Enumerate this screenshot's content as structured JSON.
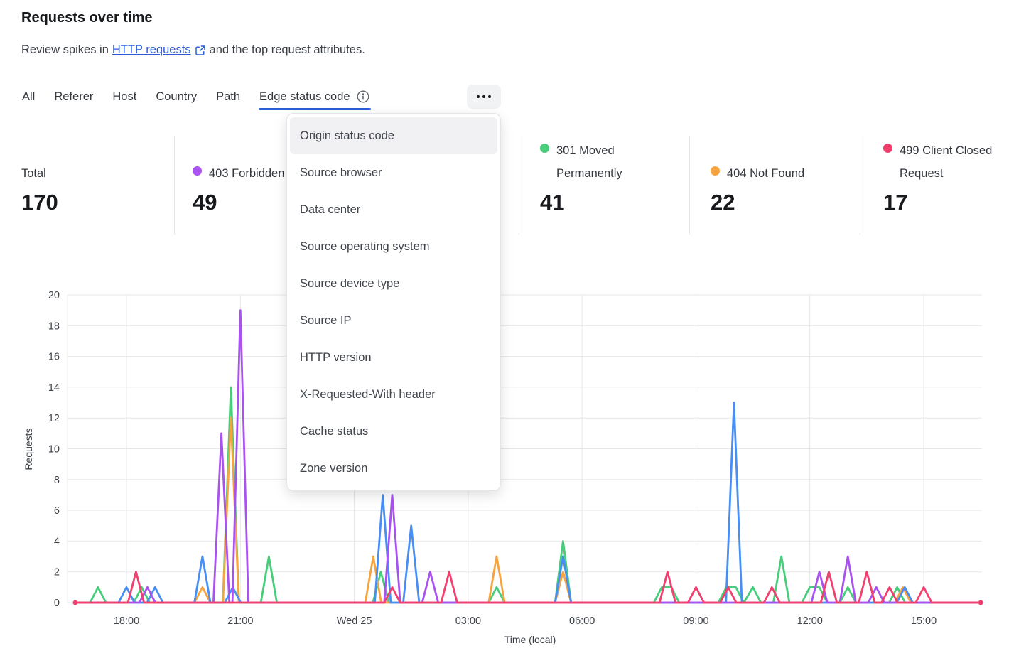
{
  "header": {
    "title": "Requests over time",
    "subtitle_prefix": "Review spikes in",
    "link_text": "HTTP requests",
    "subtitle_suffix": "and the top request attributes."
  },
  "icons": {
    "external_link_icon": "↗",
    "info_icon": "ⓘ",
    "more_icon": "⋯"
  },
  "accent_color": "#2b5cd9",
  "tabs": {
    "items": [
      {
        "label": "All",
        "active": false
      },
      {
        "label": "Referer",
        "active": false
      },
      {
        "label": "Host",
        "active": false
      },
      {
        "label": "Country",
        "active": false
      },
      {
        "label": "Path",
        "active": false
      },
      {
        "label": "Edge status code",
        "active": true,
        "has_info_icon": true
      }
    ]
  },
  "dropdown": {
    "items": [
      "Origin status code",
      "Source browser",
      "Data center",
      "Source operating system",
      "Source device type",
      "Source IP",
      "HTTP version",
      "X-Requested-With header",
      "Cache status",
      "Zone version"
    ],
    "highlighted_index": 0
  },
  "stats": [
    {
      "label": "Total",
      "value": "170",
      "color": null
    },
    {
      "label": "403 Forbidden",
      "value": "49",
      "color": "#a952f0"
    },
    {
      "label": "301 Moved Permanently",
      "value": "41",
      "color": "#48ce7b"
    },
    {
      "label": "404 Not Found",
      "value": "22",
      "color": "#f7a43e"
    },
    {
      "label": "499 Client Closed Request",
      "value": "17",
      "color": "#f23f6e"
    }
  ],
  "chart_data": {
    "type": "line",
    "title": "Requests over time",
    "xlabel": "Time (local)",
    "ylabel": "Requests",
    "ylim": [
      0,
      20
    ],
    "y_ticks": [
      0,
      2,
      4,
      6,
      8,
      10,
      12,
      14,
      16,
      18,
      20
    ],
    "grid": true,
    "x_unit": "hours since chart start (~16:30 Tue, local); samples are 15-min buckets",
    "x_domain_hours": [
      0.15,
      24.0
    ],
    "x_ticks": [
      {
        "hour": 1.5,
        "label": "18:00"
      },
      {
        "hour": 4.5,
        "label": "21:00"
      },
      {
        "hour": 7.5,
        "label": "Wed 25"
      },
      {
        "hour": 10.5,
        "label": "03:00"
      },
      {
        "hour": 13.5,
        "label": "06:00"
      },
      {
        "hour": 16.5,
        "label": "09:00"
      },
      {
        "hour": 19.5,
        "label": "12:00"
      },
      {
        "hour": 22.5,
        "label": "15:00"
      }
    ],
    "series": [
      {
        "name": "301 Moved Permanently",
        "color": "#48ce7b",
        "samples": [
          [
            0.75,
            1
          ],
          [
            1.9,
            1
          ],
          [
            4.25,
            14
          ],
          [
            5.25,
            3
          ],
          [
            8.2,
            2
          ],
          [
            11.25,
            1
          ],
          [
            13,
            4
          ],
          [
            15.6,
            1
          ],
          [
            15.85,
            1
          ],
          [
            17.3,
            1
          ],
          [
            17.55,
            1
          ],
          [
            18,
            1
          ],
          [
            18.75,
            3
          ],
          [
            19.5,
            1
          ],
          [
            19.75,
            1
          ],
          [
            20.5,
            1
          ],
          [
            21.8,
            1
          ]
        ]
      },
      {
        "name": "404 Not Found",
        "color": "#f7a43e",
        "samples": [
          [
            3.5,
            1
          ],
          [
            4.25,
            12
          ],
          [
            8,
            3
          ],
          [
            11.25,
            3
          ],
          [
            13,
            2
          ],
          [
            21.95,
            1
          ]
        ]
      },
      {
        "name": "blue series (label hidden by menu)",
        "color": "#478ef5",
        "samples": [
          [
            1.5,
            1
          ],
          [
            2.25,
            1
          ],
          [
            3.5,
            3
          ],
          [
            4.3,
            1
          ],
          [
            8.25,
            7
          ],
          [
            9,
            5
          ],
          [
            13,
            3
          ],
          [
            17.5,
            13
          ],
          [
            22,
            1
          ]
        ]
      },
      {
        "name": "403 Forbidden",
        "color": "#a952f0",
        "samples": [
          [
            2.05,
            1
          ],
          [
            4,
            11
          ],
          [
            4.5,
            19
          ],
          [
            8.5,
            7
          ],
          [
            9.5,
            2
          ],
          [
            19.75,
            2
          ],
          [
            20.5,
            3
          ],
          [
            21.25,
            1
          ]
        ]
      },
      {
        "name": "499 Client Closed Request",
        "color": "#f23f6e",
        "end_dots": true,
        "samples": [
          [
            1.75,
            2
          ],
          [
            8.5,
            1
          ],
          [
            10,
            2
          ],
          [
            15.75,
            2
          ],
          [
            16.5,
            1
          ],
          [
            17.35,
            1
          ],
          [
            18.5,
            1
          ],
          [
            20,
            2
          ],
          [
            21,
            2
          ],
          [
            21.6,
            1
          ],
          [
            22.5,
            1
          ]
        ]
      }
    ]
  }
}
